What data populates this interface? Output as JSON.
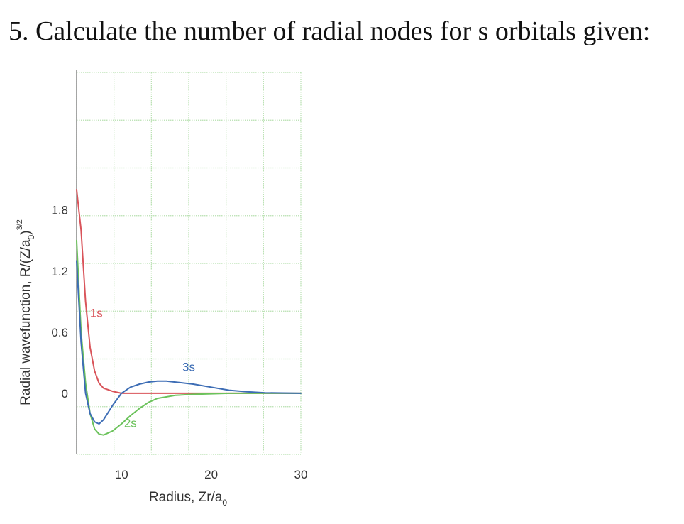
{
  "question": {
    "text": "5. Calculate the number of radial nodes for s orbitals given:"
  },
  "chart_data": {
    "type": "line",
    "xlabel": "Radius, Zr/a",
    "xlabel_subscript": "0",
    "ylabel": "Radial wavefunction, R/(Z/a",
    "ylabel_subscript": "0",
    "ylabel_close": ")",
    "ylabel_superscript": "3/2",
    "xlim": [
      5,
      30
    ],
    "ylim": [
      -0.6,
      3.15
    ],
    "x_ticks": [
      10,
      20,
      30
    ],
    "x_tick_labels": [
      "10",
      "20",
      "30"
    ],
    "y_ticks": [
      0,
      0.6,
      1.2,
      1.8
    ],
    "y_tick_labels": [
      "0",
      "0.6",
      "1.2",
      "1.8"
    ],
    "grid": true,
    "colors": {
      "grid": "#b8e0b0",
      "axis": "#888888",
      "1s": "#d9545a",
      "2s": "#6bc25b",
      "3s": "#3d6db5"
    },
    "series": [
      {
        "name": "1s",
        "color": "#d9545a",
        "x": [
          5,
          5.5,
          6,
          6.5,
          7,
          7.5,
          8,
          9,
          10,
          12,
          14,
          18,
          30
        ],
        "y": [
          2.0,
          1.6,
          0.9,
          0.45,
          0.22,
          0.1,
          0.05,
          0.02,
          0.0,
          0.0,
          0.0,
          0.0,
          0.0
        ]
      },
      {
        "name": "2s",
        "color": "#6bc25b",
        "x": [
          5,
          5.5,
          6,
          6.5,
          7,
          7.5,
          8,
          9,
          10,
          11,
          12,
          13,
          14,
          16,
          18,
          22,
          30
        ],
        "y": [
          1.5,
          0.6,
          0.1,
          -0.2,
          -0.35,
          -0.4,
          -0.41,
          -0.37,
          -0.3,
          -0.22,
          -0.15,
          -0.09,
          -0.05,
          -0.02,
          -0.01,
          0.0,
          0.0
        ]
      },
      {
        "name": "3s",
        "color": "#3d6db5",
        "x": [
          5,
          5.5,
          6,
          6.5,
          7,
          7.5,
          8,
          9,
          10,
          11,
          12,
          13,
          14,
          15,
          16,
          18,
          20,
          22,
          24,
          26,
          30
        ],
        "y": [
          1.3,
          0.5,
          0.0,
          -0.2,
          -0.28,
          -0.3,
          -0.26,
          -0.12,
          0.0,
          0.06,
          0.09,
          0.11,
          0.12,
          0.12,
          0.11,
          0.09,
          0.06,
          0.03,
          0.015,
          0.005,
          0.0
        ]
      }
    ],
    "annotations": [
      {
        "text": "1s",
        "x": 7.2,
        "y": 0.75,
        "series": "1s"
      },
      {
        "text": "3s",
        "x": 17.5,
        "y": 0.22,
        "series": "3s"
      },
      {
        "text": "2s",
        "x": 11.0,
        "y": -0.33,
        "series": "2s"
      }
    ]
  }
}
